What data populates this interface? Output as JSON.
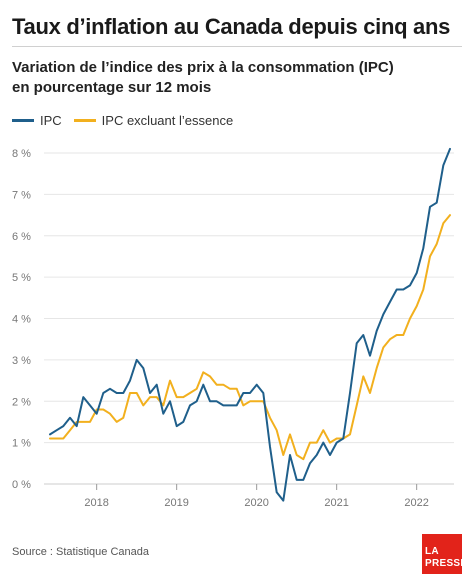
{
  "title": "Taux d’inflation au Canada depuis cinq ans",
  "subtitle_line1": "Variation de l’indice des prix à la consommation (IPC)",
  "subtitle_line2": "en pourcentage sur 12 mois",
  "source": "Source : Statistique Canada",
  "logo_line1": "LA",
  "logo_line2": "PRESSE",
  "colors": {
    "ipc": "#1f5f8b",
    "ipc_ex_gas": "#f2b01e",
    "axis": "#cccccc",
    "grid": "#e6e6e6"
  },
  "chart_data": {
    "type": "line",
    "xlabel": "",
    "ylabel": "",
    "ylim": [
      0,
      8
    ],
    "yticks": [
      0,
      1,
      2,
      3,
      4,
      5,
      6,
      7,
      8
    ],
    "ytick_labels": [
      "0 %",
      "1 %",
      "2 %",
      "3 %",
      "4 %",
      "5 %",
      "6 %",
      "7 %",
      "8 %"
    ],
    "xlim": [
      "2017-06",
      "2022-06"
    ],
    "xtick_labels": [
      "2018",
      "2019",
      "2020",
      "2021",
      "2022"
    ],
    "x": [
      "2017-06",
      "2017-07",
      "2017-08",
      "2017-09",
      "2017-10",
      "2017-11",
      "2017-12",
      "2018-01",
      "2018-02",
      "2018-03",
      "2018-04",
      "2018-05",
      "2018-06",
      "2018-07",
      "2018-08",
      "2018-09",
      "2018-10",
      "2018-11",
      "2018-12",
      "2019-01",
      "2019-02",
      "2019-03",
      "2019-04",
      "2019-05",
      "2019-06",
      "2019-07",
      "2019-08",
      "2019-09",
      "2019-10",
      "2019-11",
      "2019-12",
      "2020-01",
      "2020-02",
      "2020-03",
      "2020-04",
      "2020-05",
      "2020-06",
      "2020-07",
      "2020-08",
      "2020-09",
      "2020-10",
      "2020-11",
      "2020-12",
      "2021-01",
      "2021-02",
      "2021-03",
      "2021-04",
      "2021-05",
      "2021-06",
      "2021-07",
      "2021-08",
      "2021-09",
      "2021-10",
      "2021-11",
      "2021-12",
      "2022-01",
      "2022-02",
      "2022-03",
      "2022-04",
      "2022-05",
      "2022-06"
    ],
    "series": [
      {
        "name": "IPC",
        "color": "#1f5f8b",
        "values": [
          1.2,
          1.3,
          1.4,
          1.6,
          1.4,
          2.1,
          1.9,
          1.7,
          2.2,
          2.3,
          2.2,
          2.2,
          2.5,
          3.0,
          2.8,
          2.2,
          2.4,
          1.7,
          2.0,
          1.4,
          1.5,
          1.9,
          2.0,
          2.4,
          2.0,
          2.0,
          1.9,
          1.9,
          1.9,
          2.2,
          2.2,
          2.4,
          2.2,
          0.9,
          -0.2,
          -0.4,
          0.7,
          0.1,
          0.1,
          0.5,
          0.7,
          1.0,
          0.7,
          1.0,
          1.1,
          2.2,
          3.4,
          3.6,
          3.1,
          3.7,
          4.1,
          4.4,
          4.7,
          4.7,
          4.8,
          5.1,
          5.7,
          6.7,
          6.8,
          7.7,
          8.1
        ]
      },
      {
        "name": "IPC excluant l’essence",
        "color": "#f2b01e",
        "values": [
          1.1,
          1.1,
          1.1,
          1.3,
          1.5,
          1.5,
          1.5,
          1.8,
          1.8,
          1.7,
          1.5,
          1.6,
          2.2,
          2.2,
          1.9,
          2.1,
          2.1,
          1.9,
          2.5,
          2.1,
          2.1,
          2.2,
          2.3,
          2.7,
          2.6,
          2.4,
          2.4,
          2.3,
          2.3,
          1.9,
          2.0,
          2.0,
          2.0,
          1.6,
          1.3,
          0.7,
          1.2,
          0.7,
          0.6,
          1.0,
          1.0,
          1.3,
          1.0,
          1.1,
          1.1,
          1.2,
          1.9,
          2.6,
          2.2,
          2.8,
          3.3,
          3.5,
          3.6,
          3.6,
          4.0,
          4.3,
          4.7,
          5.5,
          5.8,
          6.3,
          6.5
        ]
      }
    ],
    "grid": "horizontal",
    "legend": "top-left"
  }
}
